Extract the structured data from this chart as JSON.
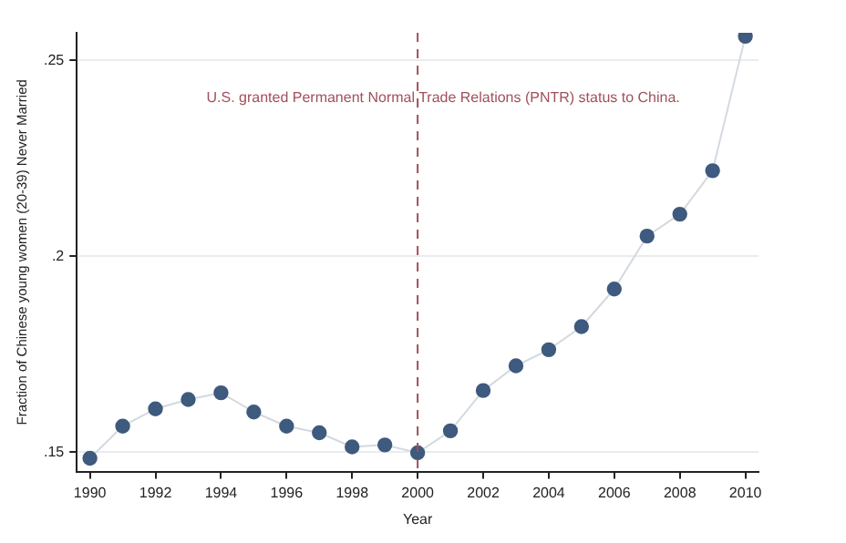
{
  "chart_data": {
    "type": "line",
    "xlabel": "Year",
    "ylabel": "Fraction of Chinese young women (20-39) Never Married",
    "x": [
      1990,
      1991,
      1992,
      1993,
      1994,
      1995,
      1996,
      1997,
      1998,
      1999,
      2000,
      2001,
      2002,
      2003,
      2004,
      2005,
      2006,
      2007,
      2008,
      2009,
      2010
    ],
    "series": [
      {
        "color": "#3e5a7e",
        "values": [
          0.1484,
          0.1566,
          0.161,
          0.1634,
          0.1651,
          0.1602,
          0.1566,
          0.1549,
          0.1513,
          0.1518,
          0.1498,
          0.1554,
          0.1657,
          0.172,
          0.1761,
          0.182,
          0.1916,
          0.2051,
          0.2107,
          0.2218,
          0.2561
        ]
      }
    ],
    "xlim": [
      1989.6,
      2010.4
    ],
    "xticks": [
      1990,
      1992,
      1994,
      1996,
      1998,
      2000,
      2002,
      2004,
      2006,
      2008,
      2010
    ],
    "ylim": [
      0.145,
      0.257
    ],
    "yticks": [
      {
        "value": 0.15,
        "label": ".15"
      },
      {
        "value": 0.2,
        "label": ".2"
      },
      {
        "value": 0.25,
        "label": ".25"
      }
    ],
    "grid": "y",
    "marker": "circle",
    "line_style": "solid",
    "legend": false,
    "ref_lines": [
      {
        "axis": "x",
        "value": 2000,
        "label": "U.S. granted Permanent Normal Trade Relations (PNTR) status to China.",
        "color": "#a0505a",
        "line_style": "dashed"
      }
    ]
  }
}
